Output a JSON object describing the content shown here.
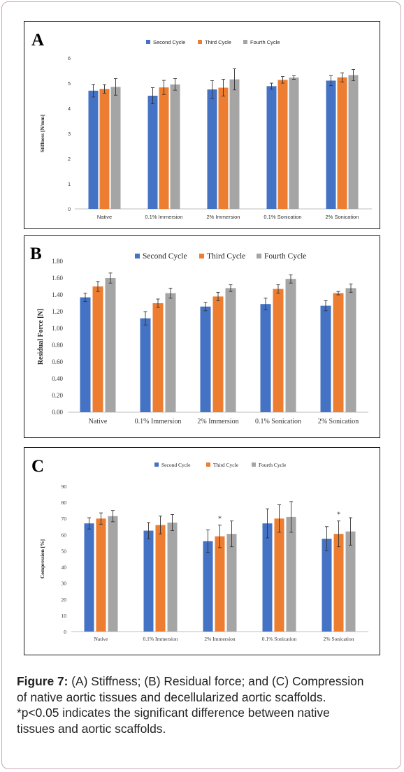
{
  "colors": {
    "second": "#4472C4",
    "third": "#ED7D31",
    "fourth": "#A5A5A5",
    "border": "#c9a7b6"
  },
  "caption": {
    "label": "Figure 7:",
    "line1": " (A) Stiffness; (B) Residual force; and (C) Compression",
    "line2": "of native aortic tissues and decellularized aortic scaffolds.",
    "line3": "*p<0.05 indicates the significant difference between native",
    "line4": "tissues and aortic scaffolds."
  },
  "chart_data": [
    {
      "panel": "A",
      "type": "bar",
      "categories": [
        "Native",
        "0.1% Immersion",
        "2% Immersion",
        "0.1% Sonication",
        "2% Sonication"
      ],
      "ylabel": "Stiffness [N/mm]",
      "ylim": [
        0,
        6
      ],
      "yticks": [
        "0",
        "1",
        "2",
        "3",
        "4",
        "5",
        "6"
      ],
      "legend": "top",
      "grid": false,
      "series": [
        {
          "name": "Second Cycle",
          "values": [
            4.7,
            4.5,
            4.75,
            4.88,
            5.1
          ],
          "errors": [
            0.25,
            0.32,
            0.35,
            0.12,
            0.2
          ]
        },
        {
          "name": "Third Cycle",
          "values": [
            4.77,
            4.83,
            4.82,
            5.13,
            5.23
          ],
          "errors": [
            0.17,
            0.28,
            0.33,
            0.13,
            0.18
          ]
        },
        {
          "name": "Fourth Cycle",
          "values": [
            4.85,
            4.95,
            5.15,
            5.22,
            5.32
          ],
          "errors": [
            0.33,
            0.23,
            0.42,
            0.07,
            0.22
          ]
        }
      ]
    },
    {
      "panel": "B",
      "type": "bar",
      "categories": [
        "Native",
        "0.1% Immersion",
        "2% Immersion",
        "0.1% Sonication",
        "2% Sonication"
      ],
      "ylabel": "Residual Force [N]",
      "ylim": [
        0,
        1.8
      ],
      "yticks": [
        "0.00",
        "0.20",
        "0.40",
        "0.60",
        "0.80",
        "1.00",
        "1.20",
        "1.40",
        "1.60",
        "1.80"
      ],
      "legend": "top",
      "grid": false,
      "series": [
        {
          "name": "Second Cycle",
          "values": [
            1.37,
            1.12,
            1.26,
            1.29,
            1.27
          ],
          "errors": [
            0.05,
            0.08,
            0.05,
            0.07,
            0.06
          ]
        },
        {
          "name": "Third Cycle",
          "values": [
            1.5,
            1.3,
            1.38,
            1.47,
            1.42
          ],
          "errors": [
            0.06,
            0.05,
            0.05,
            0.05,
            0.02
          ]
        },
        {
          "name": "Fourth Cycle",
          "values": [
            1.6,
            1.42,
            1.48,
            1.59,
            1.48
          ],
          "errors": [
            0.06,
            0.06,
            0.04,
            0.05,
            0.05
          ]
        }
      ]
    },
    {
      "panel": "C",
      "type": "bar",
      "categories": [
        "Native",
        "0.1% Immersion",
        "2% Immersion",
        "0.1% Sonication",
        "2% Sonication"
      ],
      "ylabel": "Compression [%]",
      "ylim": [
        0,
        90
      ],
      "yticks": [
        "0",
        "10",
        "20",
        "30",
        "40",
        "50",
        "60",
        "70",
        "80",
        "90"
      ],
      "legend": "top",
      "grid": false,
      "annotations": [
        {
          "category": "2% Immersion",
          "text": "*"
        },
        {
          "category": "2% Sonication",
          "text": "*"
        }
      ],
      "series": [
        {
          "name": "Second Cycle",
          "values": [
            67,
            62.5,
            56,
            67,
            57.5
          ],
          "errors": [
            3.5,
            5,
            7,
            9,
            7.5
          ]
        },
        {
          "name": "Third Cycle",
          "values": [
            70,
            66,
            59,
            70,
            60.5
          ],
          "errors": [
            3.5,
            5.5,
            7,
            8.5,
            8
          ]
        },
        {
          "name": "Fourth Cycle",
          "values": [
            71.5,
            67.5,
            60.5,
            71,
            62
          ],
          "errors": [
            3.5,
            5,
            8,
            9.5,
            8.5
          ]
        }
      ]
    }
  ]
}
